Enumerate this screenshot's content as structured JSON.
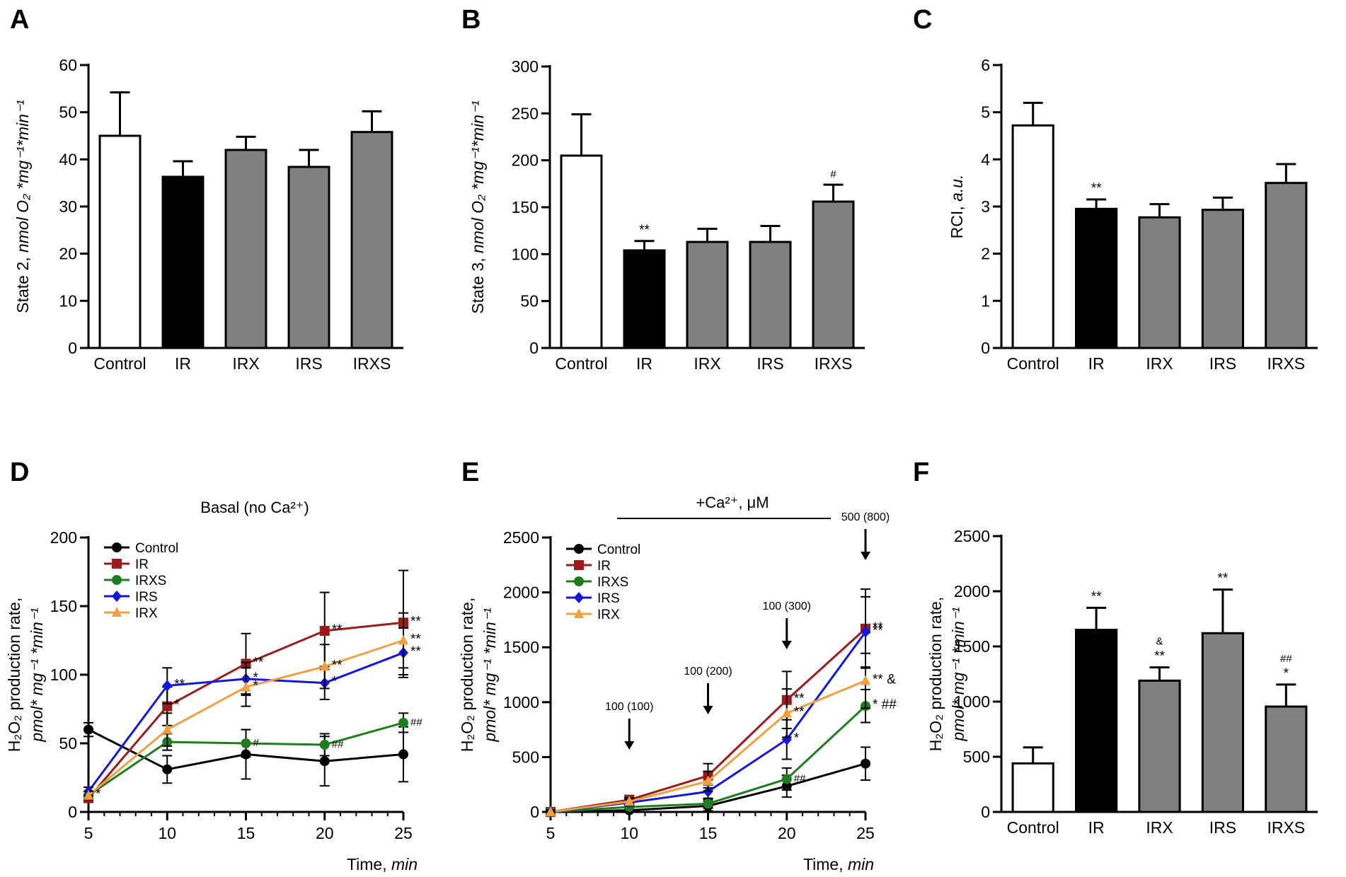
{
  "chart_data": [
    {
      "id": "A",
      "letter": "A",
      "type": "bar",
      "categories": [
        "Control",
        "IR",
        "IRX",
        "IRS",
        "IRXS"
      ],
      "values": [
        45,
        36.3,
        42,
        38.4,
        45.8
      ],
      "errors": [
        9.2,
        3.3,
        2.8,
        3.6,
        4.4
      ],
      "fill_colors": [
        "#ffffff",
        "#000000",
        "#808080",
        "#808080",
        "#808080"
      ],
      "ylim": [
        0,
        60
      ],
      "yticks": [
        0,
        10,
        20,
        30,
        40,
        50,
        60
      ],
      "ylabel": "State 2, nmol O₂ *mg⁻¹*min⁻¹",
      "annotations": [
        "",
        "",
        "",
        "",
        ""
      ]
    },
    {
      "id": "B",
      "letter": "B",
      "type": "bar",
      "categories": [
        "Control",
        "IR",
        "IRX",
        "IRS",
        "IRXS"
      ],
      "values": [
        205,
        104,
        113,
        113,
        156
      ],
      "errors": [
        44,
        10,
        14,
        17,
        18
      ],
      "fill_colors": [
        "#ffffff",
        "#000000",
        "#808080",
        "#808080",
        "#808080"
      ],
      "ylim": [
        0,
        300
      ],
      "yticks": [
        0,
        50,
        100,
        150,
        200,
        250,
        300
      ],
      "ylabel": "State 3, nmol O₂ *mg⁻¹*min⁻¹",
      "annotations": [
        "",
        "**",
        "",
        "",
        "#"
      ]
    },
    {
      "id": "C",
      "letter": "C",
      "type": "bar",
      "categories": [
        "Control",
        "IR",
        "IRX",
        "IRS",
        "IRXS"
      ],
      "values": [
        4.72,
        2.95,
        2.77,
        2.93,
        3.5
      ],
      "errors": [
        0.48,
        0.2,
        0.28,
        0.26,
        0.4
      ],
      "fill_colors": [
        "#ffffff",
        "#000000",
        "#808080",
        "#808080",
        "#808080"
      ],
      "ylim": [
        0,
        6
      ],
      "yticks": [
        0,
        1,
        2,
        3,
        4,
        5,
        6
      ],
      "ylabel": "RCI, a.u.",
      "annotations": [
        "",
        "**",
        "",
        "",
        ""
      ]
    },
    {
      "id": "D",
      "letter": "D",
      "type": "line",
      "title": "Basal (no Ca²⁺)",
      "x": [
        5,
        10,
        15,
        20,
        25
      ],
      "xlim": [
        5,
        25
      ],
      "xticks": [
        5,
        10,
        15,
        20,
        25
      ],
      "ylim": [
        0,
        200
      ],
      "yticks": [
        0,
        50,
        100,
        150,
        200
      ],
      "xlabel": "Time, min",
      "ylabel_line1": "H₂O₂ production rate,",
      "ylabel_line2": "pmol* mg⁻¹ *min⁻¹",
      "series": [
        {
          "name": "Control",
          "color": "#000000",
          "marker": "circle",
          "values": [
            60,
            31,
            42,
            37,
            42
          ],
          "errors": [
            5,
            10,
            18,
            18,
            20
          ],
          "annotations": [
            "",
            "",
            "",
            "",
            ""
          ]
        },
        {
          "name": "IR",
          "color": "#9b1b1b",
          "marker": "square",
          "values": [
            10,
            77,
            108,
            132,
            138
          ],
          "errors": [
            3,
            14,
            22,
            28,
            38
          ],
          "annotations": [
            "",
            "*",
            "**",
            "**",
            "**"
          ]
        },
        {
          "name": "IRXS",
          "color": "#1e7d1e",
          "marker": "circle",
          "values": [
            12,
            51,
            50,
            49,
            65
          ],
          "errors": [
            3,
            6,
            10,
            8,
            7
          ],
          "annotations": [
            "*",
            "",
            "#",
            "##",
            "##"
          ]
        },
        {
          "name": "IRS",
          "color": "#1515e0",
          "marker": "diamond",
          "values": [
            15,
            92,
            97,
            94,
            116
          ],
          "errors": [
            3,
            13,
            12,
            12,
            18
          ],
          "annotations": [
            "",
            "**",
            "*",
            "*",
            "**"
          ]
        },
        {
          "name": "IRX",
          "color": "#f0a040",
          "marker": "triangle",
          "values": [
            12,
            60,
            91,
            106,
            125
          ],
          "errors": [
            3,
            12,
            14,
            16,
            20
          ],
          "annotations": [
            "",
            "",
            "*",
            "**",
            "**"
          ]
        }
      ]
    },
    {
      "id": "E",
      "letter": "E",
      "type": "line",
      "title": "+Ca²⁺, μM",
      "x": [
        5,
        10,
        15,
        20,
        25
      ],
      "xlim": [
        5,
        25
      ],
      "xticks": [
        5,
        10,
        15,
        20,
        25
      ],
      "ylim": [
        0,
        2500
      ],
      "yticks": [
        0,
        500,
        1000,
        1500,
        2000,
        2500
      ],
      "xlabel": "Time, min",
      "ylabel_line1": "H₂O₂ production rate,",
      "ylabel_line2": "pmol* mg⁻¹ *min⁻¹",
      "arrows": [
        {
          "x": 10,
          "label": "100 (100)"
        },
        {
          "x": 15,
          "label": "100 (200)"
        },
        {
          "x": 20,
          "label": "100 (300)"
        },
        {
          "x": 25,
          "label": "500 (800)"
        }
      ],
      "series": [
        {
          "name": "Control",
          "color": "#000000",
          "marker": "circle",
          "values": [
            0,
            15,
            55,
            235,
            440
          ],
          "errors": [
            15,
            25,
            45,
            100,
            150
          ],
          "annotations": [
            "",
            "",
            "",
            "",
            ""
          ]
        },
        {
          "name": "IR",
          "color": "#9b1b1b",
          "marker": "square",
          "values": [
            0,
            110,
            330,
            1020,
            1670
          ],
          "errors": [
            15,
            40,
            110,
            260,
            360
          ],
          "annotations": [
            "",
            "",
            "",
            "**",
            "**"
          ]
        },
        {
          "name": "IRXS",
          "color": "#1e7d1e",
          "marker": "circle",
          "values": [
            0,
            45,
            75,
            300,
            965
          ],
          "errors": [
            15,
            20,
            40,
            100,
            150
          ],
          "annotations": [
            "",
            "",
            "",
            "##",
            "* ##"
          ]
        },
        {
          "name": "IRS",
          "color": "#1515e0",
          "marker": "diamond",
          "values": [
            0,
            85,
            185,
            660,
            1640
          ],
          "errors": [
            15,
            30,
            60,
            180,
            320
          ],
          "annotations": [
            "",
            "",
            "",
            "*",
            "**"
          ]
        },
        {
          "name": "IRX",
          "color": "#f0a040",
          "marker": "triangle",
          "values": [
            0,
            95,
            280,
            900,
            1195
          ],
          "errors": [
            15,
            35,
            90,
            220,
            250
          ],
          "annotations": [
            "",
            "",
            "",
            "**",
            "** &"
          ]
        }
      ]
    },
    {
      "id": "F",
      "letter": "F",
      "type": "bar",
      "categories": [
        "Control",
        "IR",
        "IRX",
        "IRS",
        "IRXS"
      ],
      "values": [
        440,
        1650,
        1190,
        1620,
        955
      ],
      "errors": [
        145,
        200,
        120,
        395,
        200
      ],
      "fill_colors": [
        "#ffffff",
        "#000000",
        "#808080",
        "#808080",
        "#808080"
      ],
      "ylim": [
        0,
        2500
      ],
      "yticks": [
        0,
        500,
        1000,
        1500,
        2000,
        2500
      ],
      "ylabel_line1": "H₂O₂ production rate,",
      "ylabel_line2": "pmol* mg⁻¹ *min⁻¹",
      "annotations": [
        "",
        "**",
        "&|**",
        "**",
        "##|*"
      ]
    }
  ]
}
